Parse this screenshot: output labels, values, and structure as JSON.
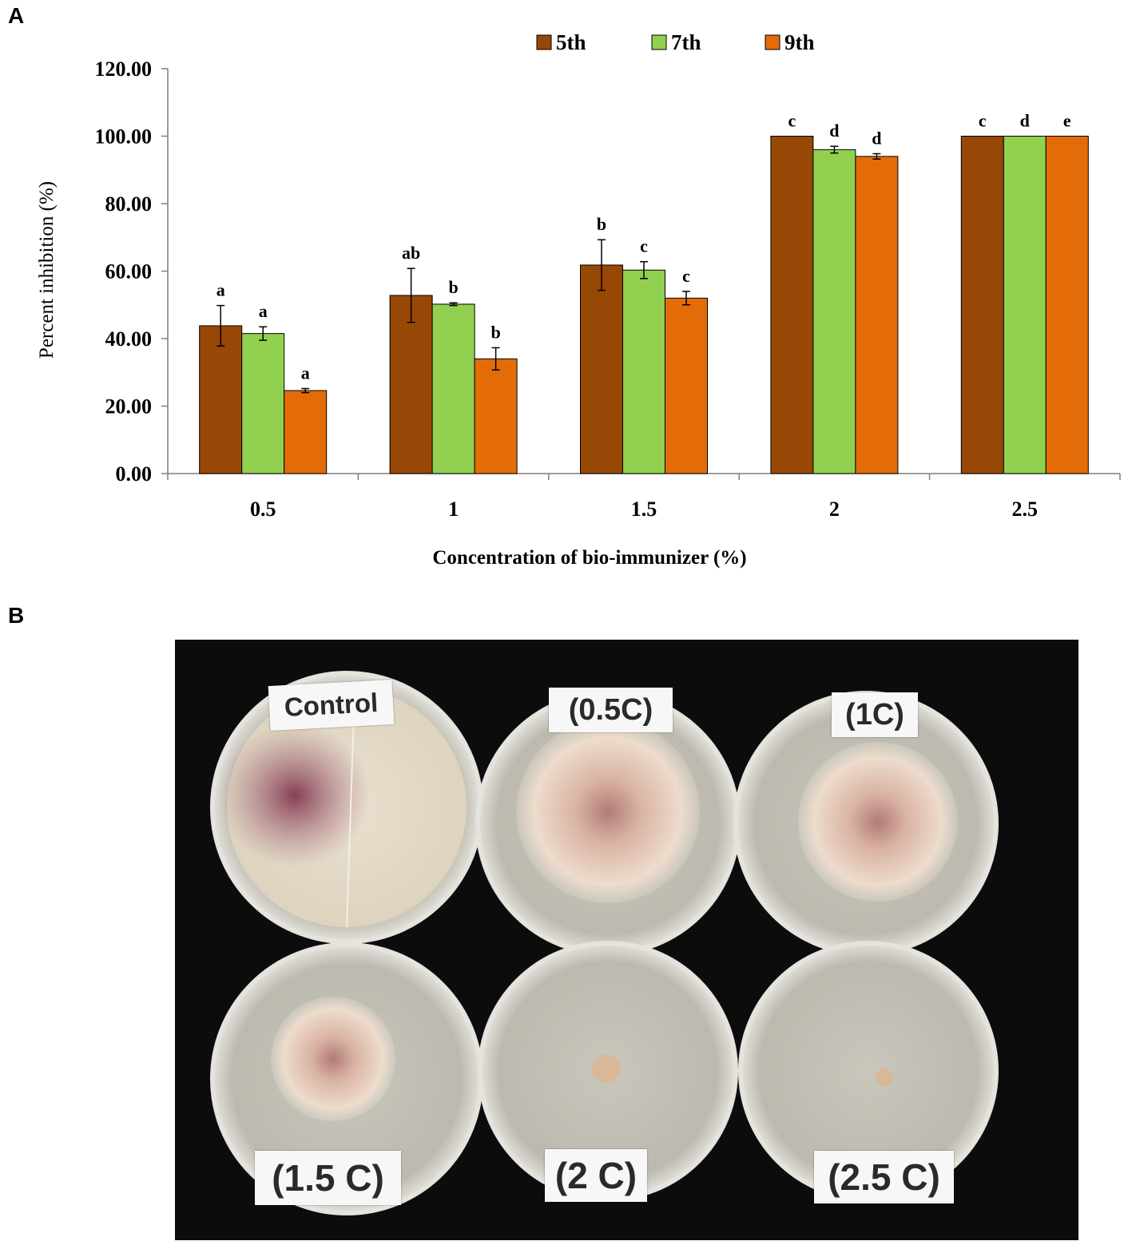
{
  "panel_a_label": "A",
  "panel_b_label": "B",
  "chart_data": {
    "type": "bar",
    "title": "",
    "xlabel": "Concentration of bio-immunizer (%)",
    "ylabel": "Percent inhibition (%)",
    "ylim": [
      0,
      120
    ],
    "yticks": [
      "0.00",
      "20.00",
      "40.00",
      "60.00",
      "80.00",
      "100.00",
      "120.00"
    ],
    "categories": [
      "0.5",
      "1",
      "1.5",
      "2",
      "2.5"
    ],
    "legend_position": "top-center",
    "series": [
      {
        "name": "5th",
        "color": "#974706",
        "values": [
          43.8,
          52.8,
          61.8,
          100.0,
          100.0
        ],
        "errors": [
          6.0,
          8.0,
          7.5,
          0,
          0
        ],
        "letters": [
          "a",
          "ab",
          "b",
          "c",
          "c"
        ]
      },
      {
        "name": "7th",
        "color": "#92d050",
        "values": [
          41.5,
          50.2,
          60.3,
          96.0,
          100.0
        ],
        "errors": [
          2.0,
          0.4,
          2.5,
          1.0,
          0
        ],
        "letters": [
          "a",
          "b",
          "c",
          "d",
          "d"
        ]
      },
      {
        "name": "9th",
        "color": "#e36c09",
        "values": [
          24.6,
          34.0,
          52.0,
          94.0,
          100.0
        ],
        "errors": [
          0.6,
          3.3,
          2.0,
          0.8,
          0
        ],
        "letters": [
          "a",
          "b",
          "c",
          "d",
          "e"
        ]
      }
    ]
  },
  "photo": {
    "plates": [
      {
        "label": "Control"
      },
      {
        "label": "(0.5C)"
      },
      {
        "label": "(1C)"
      },
      {
        "label": "(1.5 C)"
      },
      {
        "label": "(2 C)"
      },
      {
        "label": "(2.5 C)"
      }
    ]
  }
}
